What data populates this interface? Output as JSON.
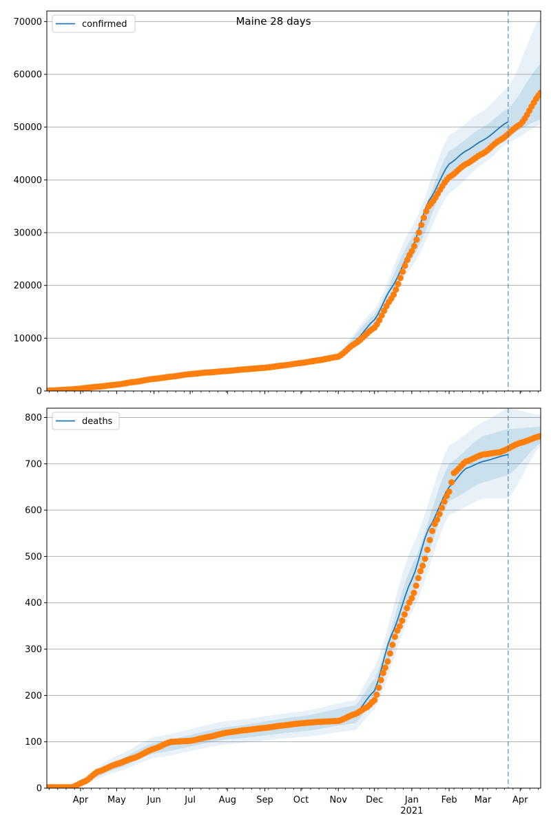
{
  "figure": {
    "title": "Maine 28 days"
  },
  "colors": {
    "model_line": "#1f77b4",
    "band": "#1f77b4",
    "observed": "#ff7f0e",
    "forecast_marker": "#1f77b4",
    "grid": "#b0b0b0"
  },
  "x_axis": {
    "month_labels": [
      "Apr",
      "May",
      "Jun",
      "Jul",
      "Aug",
      "Sep",
      "Oct",
      "Nov",
      "Dec",
      "Jan",
      "Feb",
      "Mar",
      "Apr"
    ],
    "month_offsets": [
      0,
      30,
      61,
      91,
      122,
      153,
      183,
      214,
      244,
      275,
      306,
      334,
      365
    ],
    "year_label": "2021",
    "year_under_month": 9
  },
  "chart_data": [
    {
      "type": "line",
      "name": "confirmed",
      "legend": [
        "confirmed"
      ],
      "legend_position": "upper-left",
      "grid": "y",
      "ylim": [
        0,
        72000
      ],
      "yticks": [
        0,
        10000,
        20000,
        30000,
        40000,
        50000,
        60000,
        70000
      ],
      "xlim": [
        "2020-03-04",
        "2021-04-18"
      ],
      "forecast_start": "2021-03-22",
      "model": {
        "x": [
          "2020-03-04",
          "2020-04-01",
          "2020-05-01",
          "2020-06-01",
          "2020-07-01",
          "2020-08-01",
          "2020-09-01",
          "2020-10-01",
          "2020-11-01",
          "2020-11-15",
          "2020-12-01",
          "2020-12-15",
          "2021-01-01",
          "2021-01-15",
          "2021-02-01",
          "2021-02-15",
          "2021-03-01",
          "2021-03-22"
        ],
        "y": [
          100,
          500,
          1300,
          2400,
          3300,
          3900,
          4500,
          5400,
          6800,
          9500,
          13500,
          19500,
          27000,
          36000,
          43000,
          45500,
          47500,
          51000
        ]
      },
      "bands_outer": {
        "x": [
          "2020-10-01",
          "2020-11-01",
          "2020-12-01",
          "2021-01-01",
          "2021-02-01",
          "2021-03-01",
          "2021-03-22",
          "2021-04-18"
        ],
        "lower": [
          5100,
          6200,
          11500,
          23500,
          37500,
          43000,
          47000,
          50500
        ],
        "upper": [
          5700,
          7400,
          15500,
          31000,
          48500,
          53000,
          57500,
          71000
        ]
      },
      "bands_inner": {
        "x": [
          "2020-10-01",
          "2020-11-01",
          "2020-12-01",
          "2021-01-01",
          "2021-02-01",
          "2021-03-01",
          "2021-03-22",
          "2021-04-18"
        ],
        "lower": [
          5250,
          6500,
          12500,
          25000,
          40500,
          45000,
          48500,
          51500
        ],
        "upper": [
          5550,
          7100,
          14500,
          29000,
          45500,
          50000,
          53500,
          62000
        ]
      },
      "observed": {
        "x": [
          "2020-03-04",
          "2020-03-25",
          "2020-04-15",
          "2020-05-01",
          "2020-05-15",
          "2020-06-01",
          "2020-06-15",
          "2020-07-01",
          "2020-07-15",
          "2020-08-01",
          "2020-08-15",
          "2020-09-01",
          "2020-09-15",
          "2020-10-01",
          "2020-10-15",
          "2020-11-01",
          "2020-11-15",
          "2020-12-01",
          "2020-12-15",
          "2021-01-01",
          "2021-01-15",
          "2021-02-01",
          "2021-02-15",
          "2021-03-01",
          "2021-03-15",
          "2021-04-01",
          "2021-04-18"
        ],
        "y": [
          50,
          300,
          800,
          1200,
          1700,
          2300,
          2700,
          3200,
          3500,
          3800,
          4100,
          4400,
          4800,
          5300,
          5800,
          6500,
          9000,
          12000,
          17500,
          26500,
          35000,
          40500,
          43000,
          45000,
          47500,
          50500,
          56500
        ]
      }
    },
    {
      "type": "line",
      "name": "deaths",
      "legend": [
        "deaths"
      ],
      "legend_position": "upper-left",
      "grid": "y",
      "ylim": [
        0,
        820
      ],
      "yticks": [
        0,
        100,
        200,
        300,
        400,
        500,
        600,
        700,
        800
      ],
      "xlim": [
        "2020-03-04",
        "2021-04-18"
      ],
      "forecast_start": "2021-03-22",
      "model": {
        "x": [
          "2020-03-04",
          "2020-03-25",
          "2020-04-15",
          "2020-05-01",
          "2020-06-01",
          "2020-07-01",
          "2020-08-01",
          "2020-09-01",
          "2020-10-01",
          "2020-11-01",
          "2020-11-15",
          "2020-12-01",
          "2020-12-15",
          "2021-01-01",
          "2021-01-15",
          "2021-02-01",
          "2021-02-15",
          "2021-03-01",
          "2021-03-22"
        ],
        "y": [
          0,
          2,
          30,
          50,
          85,
          105,
          118,
          130,
          140,
          148,
          160,
          210,
          330,
          450,
          560,
          650,
          690,
          705,
          720
        ]
      },
      "bands_outer": {
        "x": [
          "2020-03-25",
          "2020-05-01",
          "2020-06-01",
          "2020-08-01",
          "2020-10-01",
          "2020-11-15",
          "2020-12-01",
          "2021-01-01",
          "2021-02-01",
          "2021-03-01",
          "2021-03-22",
          "2021-04-18"
        ],
        "lower": [
          0,
          35,
          65,
          95,
          110,
          125,
          170,
          380,
          590,
          625,
          625,
          740
        ],
        "upper": [
          8,
          70,
          110,
          145,
          165,
          190,
          260,
          520,
          740,
          790,
          820,
          805
        ]
      },
      "bands_inner": {
        "x": [
          "2020-03-25",
          "2020-05-01",
          "2020-06-01",
          "2020-08-01",
          "2020-10-01",
          "2020-11-15",
          "2020-12-01",
          "2021-01-01",
          "2021-02-01",
          "2021-03-01",
          "2021-03-22",
          "2021-04-18"
        ],
        "lower": [
          1,
          42,
          75,
          105,
          122,
          140,
          190,
          420,
          620,
          660,
          675,
          745
        ],
        "upper": [
          5,
          60,
          98,
          132,
          155,
          178,
          235,
          480,
          700,
          760,
          775,
          780
        ]
      },
      "observed": {
        "x": [
          "2020-03-04",
          "2020-03-25",
          "2020-04-05",
          "2020-04-15",
          "2020-05-01",
          "2020-05-15",
          "2020-06-01",
          "2020-06-15",
          "2020-07-01",
          "2020-07-15",
          "2020-08-01",
          "2020-08-15",
          "2020-09-01",
          "2020-09-15",
          "2020-10-01",
          "2020-10-15",
          "2020-11-01",
          "2020-11-15",
          "2020-11-25",
          "2020-12-01",
          "2020-12-10",
          "2020-12-20",
          "2021-01-01",
          "2021-01-10",
          "2021-01-20",
          "2021-02-01",
          "2021-02-05",
          "2021-02-15",
          "2021-03-01",
          "2021-03-15",
          "2021-04-01",
          "2021-04-18"
        ],
        "y": [
          2,
          2,
          15,
          35,
          52,
          65,
          85,
          100,
          102,
          110,
          120,
          125,
          130,
          135,
          140,
          143,
          145,
          160,
          175,
          190,
          260,
          340,
          410,
          480,
          570,
          640,
          680,
          705,
          720,
          725,
          745,
          760
        ]
      }
    }
  ]
}
